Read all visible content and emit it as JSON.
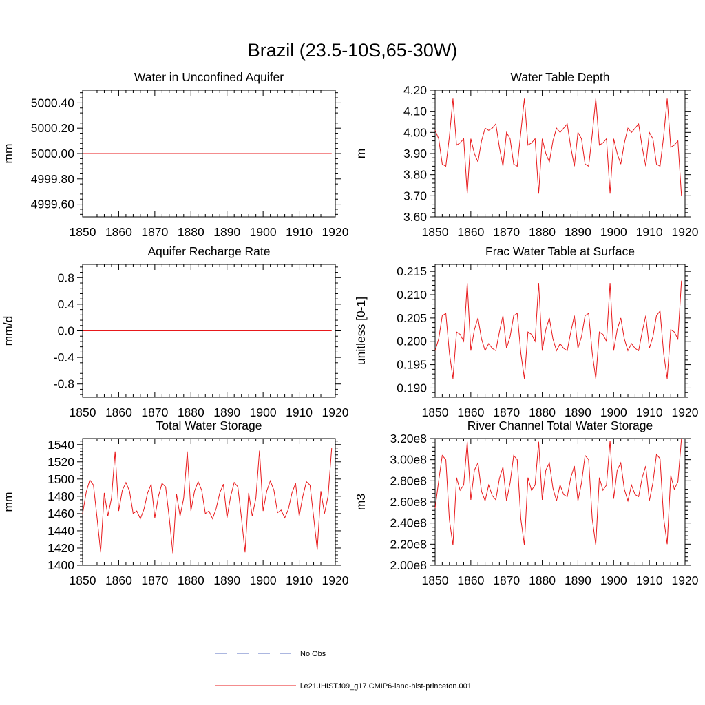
{
  "figure": {
    "title": "Brazil (23.5-10S,65-30W)",
    "legend": [
      {
        "label": "No Obs",
        "color": "#5a6fc0",
        "style": "dashed"
      },
      {
        "label": "i.e21.IHIST.f09_g17.CMIP6-land-hist-princeton.001",
        "color": "#e8191b",
        "style": "solid"
      }
    ]
  },
  "chart_data": [
    {
      "type": "line",
      "title": "Water in Unconfined Aquifer",
      "ylabel": "mm",
      "xlim": [
        1850,
        1920
      ],
      "ylim": [
        4999.5,
        5000.5
      ],
      "x_ticks": [
        1850,
        1860,
        1870,
        1880,
        1890,
        1900,
        1910,
        1920
      ],
      "y_ticks": [
        4999.6,
        4999.8,
        5000.0,
        5000.2,
        5000.4
      ],
      "y_tick_labels": [
        "4999.60",
        "4999.80",
        "5000.00",
        "5000.20",
        "5000.40"
      ],
      "series": [
        {
          "color": "#e8191b",
          "x": [
            1850,
            1919
          ],
          "y": [
            5000.0,
            5000.0
          ]
        }
      ]
    },
    {
      "type": "line",
      "title": "Water Table Depth",
      "ylabel": "m",
      "xlim": [
        1850,
        1920
      ],
      "ylim": [
        3.6,
        4.2
      ],
      "x_ticks": [
        1850,
        1860,
        1870,
        1880,
        1890,
        1900,
        1910,
        1920
      ],
      "y_ticks": [
        3.6,
        3.7,
        3.8,
        3.9,
        4.0,
        4.1,
        4.2
      ],
      "y_tick_labels": [
        "3.60",
        "3.70",
        "3.80",
        "3.90",
        "4.00",
        "4.10",
        "4.20"
      ],
      "series": [
        {
          "color": "#e8191b",
          "x_start": 1850,
          "x_step": 1,
          "y": [
            4.01,
            3.97,
            3.85,
            3.84,
            3.98,
            4.16,
            3.94,
            3.95,
            3.97,
            3.71,
            3.97,
            3.9,
            3.86,
            3.96,
            4.02,
            4.01,
            4.02,
            4.04,
            3.93,
            3.84,
            4.0,
            3.97,
            3.85,
            3.84,
            4.0,
            4.16,
            3.94,
            3.95,
            3.97,
            3.71,
            3.97,
            3.9,
            3.86,
            3.96,
            4.02,
            4.0,
            4.02,
            4.04,
            3.93,
            3.84,
            4.0,
            3.97,
            3.85,
            3.84,
            3.99,
            4.16,
            3.94,
            3.95,
            3.97,
            3.71,
            3.97,
            3.9,
            3.85,
            3.95,
            4.02,
            4.0,
            4.02,
            4.04,
            3.93,
            3.84,
            4.0,
            3.97,
            3.85,
            3.84,
            3.98,
            4.16,
            3.93,
            3.94,
            3.96,
            3.7
          ]
        }
      ]
    },
    {
      "type": "line",
      "title": "Aquifer Recharge Rate",
      "ylabel": "mm/d",
      "xlim": [
        1850,
        1920
      ],
      "ylim": [
        -1.0,
        1.0
      ],
      "x_ticks": [
        1850,
        1860,
        1870,
        1880,
        1890,
        1900,
        1910,
        1920
      ],
      "y_ticks": [
        -0.8,
        -0.4,
        0.0,
        0.4,
        0.8
      ],
      "y_tick_labels": [
        "-0.8",
        "-0.4",
        "0.0",
        "0.4",
        "0.8"
      ],
      "series": [
        {
          "color": "#e8191b",
          "x": [
            1850,
            1919
          ],
          "y": [
            0.0,
            0.0
          ]
        }
      ]
    },
    {
      "type": "line",
      "title": "Frac Water Table at Surface",
      "ylabel": "unitless [0-1]",
      "xlim": [
        1850,
        1920
      ],
      "ylim": [
        0.188,
        0.2165
      ],
      "x_ticks": [
        1850,
        1860,
        1870,
        1880,
        1890,
        1900,
        1910,
        1920
      ],
      "y_ticks": [
        0.19,
        0.195,
        0.2,
        0.205,
        0.21,
        0.215
      ],
      "y_tick_labels": [
        "0.190",
        "0.195",
        "0.200",
        "0.205",
        "0.210",
        "0.215"
      ],
      "series": [
        {
          "color": "#e8191b",
          "x_start": 1850,
          "x_step": 1,
          "y": [
            0.198,
            0.2005,
            0.2055,
            0.206,
            0.1975,
            0.192,
            0.202,
            0.2015,
            0.2,
            0.2125,
            0.198,
            0.2025,
            0.205,
            0.2005,
            0.198,
            0.1995,
            0.1985,
            0.198,
            0.202,
            0.2055,
            0.1985,
            0.201,
            0.2055,
            0.206,
            0.1975,
            0.192,
            0.202,
            0.2015,
            0.2,
            0.2125,
            0.198,
            0.2025,
            0.205,
            0.2005,
            0.198,
            0.1995,
            0.1985,
            0.198,
            0.202,
            0.2055,
            0.1985,
            0.201,
            0.2055,
            0.206,
            0.1975,
            0.192,
            0.202,
            0.2015,
            0.2,
            0.2125,
            0.198,
            0.2025,
            0.205,
            0.2005,
            0.198,
            0.1995,
            0.1985,
            0.198,
            0.202,
            0.2055,
            0.1985,
            0.201,
            0.2055,
            0.2065,
            0.1975,
            0.192,
            0.2025,
            0.202,
            0.2005,
            0.213
          ]
        }
      ]
    },
    {
      "type": "line",
      "title": "Total Water Storage",
      "ylabel": "mm",
      "xlim": [
        1850,
        1920
      ],
      "ylim": [
        1400,
        1547
      ],
      "x_ticks": [
        1850,
        1860,
        1870,
        1880,
        1890,
        1900,
        1910,
        1920
      ],
      "y_ticks": [
        1400,
        1420,
        1440,
        1460,
        1480,
        1500,
        1520,
        1540
      ],
      "y_tick_labels": [
        "1400",
        "1420",
        "1440",
        "1460",
        "1480",
        "1500",
        "1520",
        "1540"
      ],
      "series": [
        {
          "color": "#e8191b",
          "x_start": 1850,
          "x_step": 1,
          "y": [
            1460,
            1485,
            1499,
            1493,
            1455,
            1415,
            1484,
            1457,
            1478,
            1532,
            1463,
            1487,
            1496,
            1486,
            1460,
            1463,
            1454,
            1465,
            1484,
            1494,
            1455,
            1480,
            1495,
            1491,
            1455,
            1414,
            1483,
            1457,
            1478,
            1532,
            1463,
            1486,
            1497,
            1487,
            1460,
            1463,
            1454,
            1466,
            1484,
            1494,
            1455,
            1480,
            1496,
            1491,
            1455,
            1415,
            1484,
            1457,
            1478,
            1533,
            1463,
            1486,
            1498,
            1487,
            1461,
            1464,
            1455,
            1465,
            1484,
            1495,
            1457,
            1480,
            1497,
            1493,
            1456,
            1418,
            1486,
            1460,
            1480,
            1536
          ]
        }
      ]
    },
    {
      "type": "line",
      "title": "River Channel Total Water Storage",
      "ylabel": "m3",
      "xlim": [
        1850,
        1920
      ],
      "ylim": [
        200000000.0,
        320000000.0
      ],
      "x_ticks": [
        1850,
        1860,
        1870,
        1880,
        1890,
        1900,
        1910,
        1920
      ],
      "y_ticks": [
        200000000.0,
        220000000.0,
        240000000.0,
        260000000.0,
        280000000.0,
        300000000.0,
        320000000.0
      ],
      "y_tick_labels": [
        "2.00e8",
        "2.20e8",
        "2.40e8",
        "2.60e8",
        "2.80e8",
        "3.00e8",
        "3.20e8"
      ],
      "series": [
        {
          "color": "#e8191b",
          "x_start": 1850,
          "x_step": 1,
          "y": [
            254000000.0,
            280000000.0,
            304000000.0,
            300000000.0,
            243000000.0,
            219000000.0,
            283000000.0,
            271000000.0,
            276000000.0,
            317000000.0,
            262000000.0,
            290000000.0,
            297000000.0,
            270000000.0,
            261000000.0,
            276000000.0,
            266000000.0,
            262000000.0,
            282000000.0,
            293000000.0,
            261000000.0,
            278000000.0,
            304000000.0,
            300000000.0,
            244000000.0,
            219000000.0,
            283000000.0,
            271000000.0,
            276000000.0,
            317000000.0,
            262000000.0,
            290000000.0,
            297000000.0,
            273000000.0,
            261000000.0,
            276000000.0,
            267000000.0,
            265000000.0,
            283000000.0,
            294000000.0,
            261000000.0,
            278000000.0,
            304000000.0,
            300000000.0,
            244000000.0,
            219000000.0,
            283000000.0,
            271000000.0,
            276000000.0,
            318000000.0,
            263000000.0,
            290000000.0,
            297000000.0,
            272000000.0,
            261000000.0,
            276000000.0,
            267000000.0,
            265000000.0,
            283000000.0,
            294000000.0,
            261000000.0,
            278000000.0,
            305000000.0,
            301000000.0,
            245000000.0,
            220000000.0,
            285000000.0,
            272000000.0,
            279000000.0,
            320000000.0
          ]
        }
      ]
    }
  ]
}
